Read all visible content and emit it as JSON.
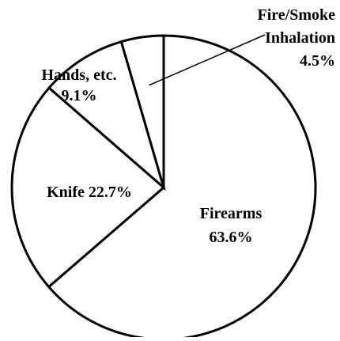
{
  "chart_data": {
    "type": "pie",
    "categories": [
      "Firearms",
      "Knife",
      "Hands, etc.",
      "Fire/Smoke Inhalation"
    ],
    "values": [
      63.6,
      22.7,
      9.1,
      4.5
    ],
    "labels": [
      [
        "Firearms",
        "63.6%"
      ],
      [
        "Knife 22.7%"
      ],
      [
        "Hands, etc.",
        "9.1%"
      ],
      [
        "Fire/Smoke",
        "Inhalation",
        "4.5%"
      ]
    ],
    "start": "12 o'clock",
    "direction": "clockwise",
    "fill": "#ffffff",
    "stroke": "#000000"
  }
}
